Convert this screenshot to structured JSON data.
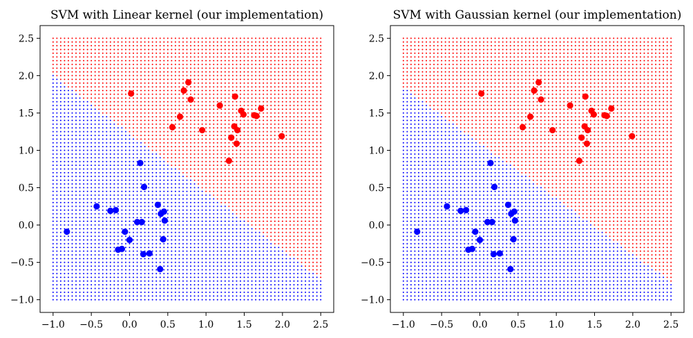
{
  "chart_data": [
    {
      "type": "scatter",
      "title": "SVM with Linear kernel (our implementation)",
      "xlim": [
        -1.17,
        2.67
      ],
      "ylim": [
        -1.17,
        2.67
      ],
      "xticks": [
        -1.0,
        -0.5,
        0.0,
        0.5,
        1.0,
        1.5,
        2.0,
        2.5
      ],
      "yticks": [
        -1.0,
        -0.5,
        0.0,
        0.5,
        1.0,
        1.5,
        2.0,
        2.5
      ],
      "xtick_labels": [
        "−1.0",
        "−0.5",
        "0.0",
        "0.5",
        "1.0",
        "1.5",
        "2.0",
        "2.5"
      ],
      "ytick_labels": [
        "−1.0",
        "−0.5",
        "0.0",
        "0.5",
        "1.0",
        "1.5",
        "2.0",
        "2.5"
      ],
      "grid": false,
      "decision_region": {
        "grid_range": [
          -1.0,
          2.5
        ],
        "grid_step": 0.05,
        "boundary_line": {
          "at_x_min": [
            -1.0,
            2.0
          ],
          "at_x_max": [
            2.5,
            -0.72
          ]
        },
        "above_color": "#ff0000",
        "below_color": "#0000ff"
      },
      "series": [
        {
          "color": "#ff0000",
          "points": [
            [
              0.02,
              1.76
            ],
            [
              0.77,
              1.91
            ],
            [
              0.71,
              1.8
            ],
            [
              0.8,
              1.68
            ],
            [
              0.66,
              1.45
            ],
            [
              0.56,
              1.31
            ],
            [
              0.95,
              1.27
            ],
            [
              1.18,
              1.6
            ],
            [
              1.38,
              1.72
            ],
            [
              1.46,
              1.53
            ],
            [
              1.49,
              1.48
            ],
            [
              1.37,
              1.32
            ],
            [
              1.41,
              1.27
            ],
            [
              1.72,
              1.56
            ],
            [
              1.66,
              1.46
            ],
            [
              1.63,
              1.47
            ],
            [
              1.33,
              1.17
            ],
            [
              1.4,
              1.09
            ],
            [
              1.99,
              1.19
            ],
            [
              1.3,
              0.86
            ]
          ]
        },
        {
          "color": "#0000ff",
          "points": [
            [
              -0.82,
              -0.09
            ],
            [
              -0.43,
              0.25
            ],
            [
              -0.25,
              0.19
            ],
            [
              -0.18,
              0.2
            ],
            [
              -0.15,
              -0.33
            ],
            [
              -0.1,
              -0.32
            ],
            [
              -0.06,
              -0.09
            ],
            [
              0.0,
              -0.2
            ],
            [
              0.1,
              0.04
            ],
            [
              0.14,
              0.83
            ],
            [
              0.16,
              0.04
            ],
            [
              0.19,
              0.51
            ],
            [
              0.18,
              -0.39
            ],
            [
              0.26,
              -0.38
            ],
            [
              0.37,
              0.27
            ],
            [
              0.41,
              0.15
            ],
            [
              0.45,
              0.18
            ],
            [
              0.46,
              0.06
            ],
            [
              0.44,
              -0.19
            ],
            [
              0.4,
              -0.59
            ]
          ]
        }
      ]
    },
    {
      "type": "scatter",
      "title": "SVM with Gaussian kernel (our implementation)",
      "xlim": [
        -1.17,
        2.67
      ],
      "ylim": [
        -1.17,
        2.67
      ],
      "xticks": [
        -1.0,
        -0.5,
        0.0,
        0.5,
        1.0,
        1.5,
        2.0,
        2.5
      ],
      "yticks": [
        -1.0,
        -0.5,
        0.0,
        0.5,
        1.0,
        1.5,
        2.0,
        2.5
      ],
      "xtick_labels": [
        "−1.0",
        "−0.5",
        "0.0",
        "0.5",
        "1.0",
        "1.5",
        "2.0",
        "2.5"
      ],
      "ytick_labels": [
        "−1.0",
        "−0.5",
        "0.0",
        "0.5",
        "1.0",
        "1.5",
        "2.0",
        "2.5"
      ],
      "grid": false,
      "decision_region": {
        "grid_range": [
          -1.0,
          2.5
        ],
        "grid_step": 0.05,
        "boundary_line": {
          "at_x_min": [
            -1.0,
            1.84
          ],
          "at_x_max": [
            2.5,
            -0.76
          ]
        },
        "above_color": "#ff0000",
        "below_color": "#0000ff"
      },
      "series": [
        {
          "color": "#ff0000",
          "points": [
            [
              0.02,
              1.76
            ],
            [
              0.77,
              1.91
            ],
            [
              0.71,
              1.8
            ],
            [
              0.8,
              1.68
            ],
            [
              0.66,
              1.45
            ],
            [
              0.56,
              1.31
            ],
            [
              0.95,
              1.27
            ],
            [
              1.18,
              1.6
            ],
            [
              1.38,
              1.72
            ],
            [
              1.46,
              1.53
            ],
            [
              1.49,
              1.48
            ],
            [
              1.37,
              1.32
            ],
            [
              1.41,
              1.27
            ],
            [
              1.72,
              1.56
            ],
            [
              1.66,
              1.46
            ],
            [
              1.63,
              1.47
            ],
            [
              1.33,
              1.17
            ],
            [
              1.4,
              1.09
            ],
            [
              1.99,
              1.19
            ],
            [
              1.3,
              0.86
            ]
          ]
        },
        {
          "color": "#0000ff",
          "points": [
            [
              -0.82,
              -0.09
            ],
            [
              -0.43,
              0.25
            ],
            [
              -0.25,
              0.19
            ],
            [
              -0.18,
              0.2
            ],
            [
              -0.15,
              -0.33
            ],
            [
              -0.1,
              -0.32
            ],
            [
              -0.06,
              -0.09
            ],
            [
              0.0,
              -0.2
            ],
            [
              0.1,
              0.04
            ],
            [
              0.14,
              0.83
            ],
            [
              0.16,
              0.04
            ],
            [
              0.19,
              0.51
            ],
            [
              0.18,
              -0.39
            ],
            [
              0.26,
              -0.38
            ],
            [
              0.37,
              0.27
            ],
            [
              0.41,
              0.15
            ],
            [
              0.45,
              0.18
            ],
            [
              0.46,
              0.06
            ],
            [
              0.44,
              -0.19
            ],
            [
              0.4,
              -0.59
            ]
          ]
        }
      ]
    }
  ]
}
